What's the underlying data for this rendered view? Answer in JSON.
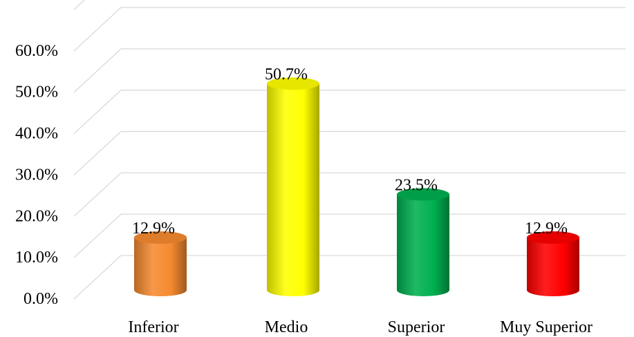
{
  "chart_data": {
    "type": "bar",
    "style": "3d-cylinder",
    "categories": [
      "Inferior",
      "Medio",
      "Superior",
      "Muy Superior"
    ],
    "values": [
      12.9,
      50.7,
      23.5,
      12.9
    ],
    "data_labels": [
      "12.9%",
      "50.7%",
      "23.5%",
      "12.9%"
    ],
    "colors": [
      "#F58A30",
      "#FFFF00",
      "#00B050",
      "#FF0000"
    ],
    "ylim": [
      0,
      70
    ],
    "yticks": [
      0,
      10,
      20,
      30,
      40,
      50,
      60
    ],
    "ytick_labels": [
      "0.0%",
      "10.0%",
      "20.0%",
      "30.0%",
      "40.0%",
      "50.0%",
      "60.0%"
    ],
    "grid": true,
    "legend": false
  }
}
